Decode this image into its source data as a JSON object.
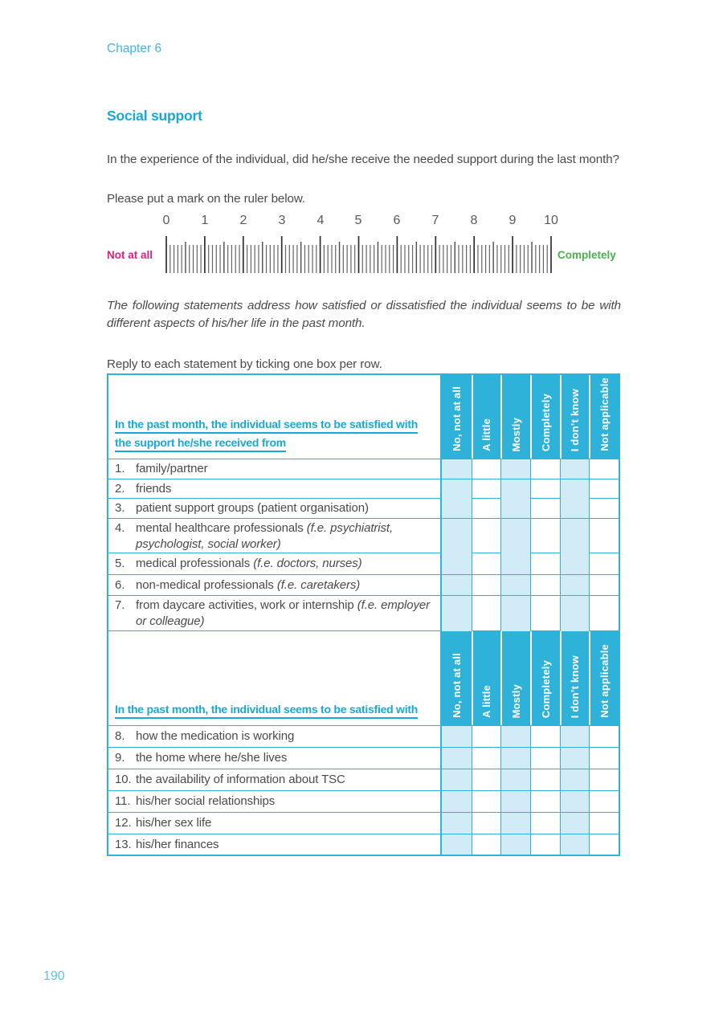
{
  "page": {
    "chapter": "Chapter 6",
    "page_number": "190"
  },
  "section": {
    "title": "Social support",
    "intro": "In the experience of the individual, did he/she receive the needed support during the last month?",
    "ruler_instruction": "Please put a mark on the ruler below.",
    "note": "The following statements address how satisfied or dissatisfied the individual seems to be with different aspects of his/her life in the past month.",
    "instruction": "Reply to each statement by ticking one box per row."
  },
  "ruler": {
    "numbers": [
      "0",
      "1",
      "2",
      "3",
      "4",
      "5",
      "6",
      "7",
      "8",
      "9",
      "10"
    ],
    "left_label": "Not at all",
    "right_label": "Completely",
    "left_label_color": "#e31c7d",
    "right_label_color": "#4caf50",
    "min": 0,
    "max": 10,
    "subdivisions_per_unit": 10
  },
  "table": {
    "columns": [
      "No, not at all",
      "A little",
      "Mostly",
      "Completely",
      "I don’t know",
      "Not applicable"
    ],
    "header1_line1": "In the past month, the individual seems to be satisfied with",
    "header1_line2": "the support he/she received from",
    "header2": "In the past month, the individual seems to be satisfied with",
    "rows_part1": [
      {
        "num": "1.",
        "text": "family/partner"
      },
      {
        "num": "2.",
        "text": "friends"
      },
      {
        "num": "3.",
        "text": "patient support groups (patient organisation)"
      },
      {
        "num": "4.",
        "text": "mental healthcare professionals ",
        "italic": "(f.e. psychiatrist, psychologist, social worker)"
      },
      {
        "num": "5.",
        "text": "medical professionals ",
        "italic": "(f.e. doctors, nurses)"
      },
      {
        "num": "6.",
        "text": "non-medical professionals ",
        "italic": "(f.e. caretakers)"
      },
      {
        "num": "7.",
        "text": "from daycare activities, work or internship ",
        "italic": "(f.e. employer or colleague)"
      }
    ],
    "rows_part2": [
      {
        "num": "8.",
        "text": "how the medication is working"
      },
      {
        "num": "9.",
        "text": "the home where he/she lives"
      },
      {
        "num": "10.",
        "text": "the availability of information about TSC"
      },
      {
        "num": "11.",
        "text": "his/her social relationships"
      },
      {
        "num": "12.",
        "text": "his/her sex life"
      },
      {
        "num": "13.",
        "text": "his/her finances"
      }
    ],
    "colors": {
      "header_bg": "#2fb2da",
      "shaded_cell": "#d2ecf7",
      "grid_border": "#2fb3da",
      "header_text": "#18a8d6"
    }
  }
}
